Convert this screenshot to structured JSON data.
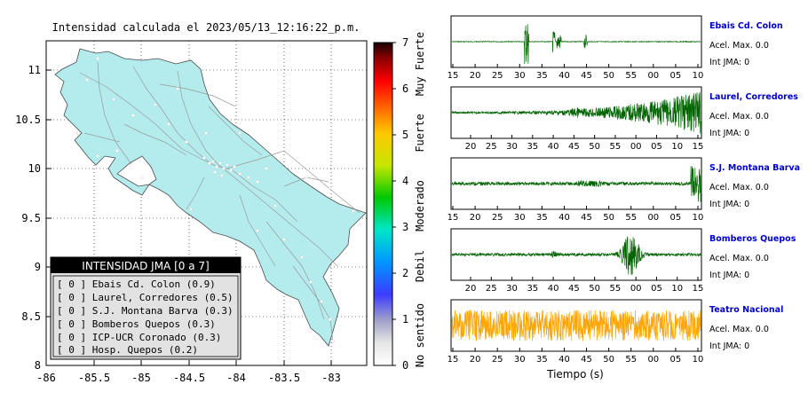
{
  "map": {
    "title": "Intensidad calculada el 2023/05/13_12:16:22_p.m.",
    "x_ticks": [
      "-86",
      "-85.5",
      "-85",
      "-84.5",
      "-84",
      "-83.5",
      "-83"
    ],
    "y_ticks": [
      "11",
      "10.5",
      "10",
      "9.5",
      "9",
      "8.5",
      "8"
    ],
    "land_color": "#b4ecee",
    "legend": {
      "title": "INTENSIDAD JMA [0 a 7]",
      "items": [
        "[ 0 ]  Ebais Cd. Colon (0.9)",
        "[ 0 ]  Laurel, Corredores (0.5)",
        "[ 0 ]  S.J. Montana Barva (0.3)",
        "[ 0 ]  Bomberos Quepos (0.3)",
        "[ 0 ]  ICP-UCR Coronado (0.3)",
        "[ 0 ]  Hosp. Quepos (0.2)"
      ]
    }
  },
  "colorbar": {
    "tick_labels": [
      "7",
      "6",
      "5",
      "4",
      "3",
      "2",
      "1",
      "0"
    ],
    "category_labels": [
      "Muy Fuerte",
      "Fuerte",
      "Moderado",
      "Debil",
      "No sentido"
    ]
  },
  "chart_data": {
    "type": "line",
    "xlabel": "Tiempo (s)",
    "series": [
      {
        "name": "Ebais Cd. Colon",
        "color": "#006400",
        "x_tick_labels": [
          "15",
          "20",
          "25",
          "30",
          "35",
          "40",
          "45",
          "50",
          "55",
          "00",
          "05",
          "10"
        ],
        "aceleracion": "Acel. Max. 0.0",
        "intensidad": "Int JMA: 0",
        "waveform": "sparse spikes near 33-40 s"
      },
      {
        "name": "Laurel, Corredores",
        "color": "#006400",
        "x_tick_labels": [
          "20",
          "25",
          "30",
          "35",
          "40",
          "45",
          "50",
          "55",
          "00",
          "05",
          "10",
          "15"
        ],
        "aceleracion": "Acel. Max. 0.0",
        "intensidad": "Int JMA: 0",
        "waveform": "amplitude increasing toward end"
      },
      {
        "name": "S.J. Montana Barva",
        "color": "#006400",
        "x_tick_labels": [
          "15",
          "20",
          "25",
          "30",
          "35",
          "40",
          "45",
          "50",
          "55",
          "00",
          "05",
          "10"
        ],
        "aceleracion": "Acel. Max. 0.0",
        "intensidad": "Int JMA: 0",
        "waveform": "low noise, spike at end"
      },
      {
        "name": "Bomberos Quepos",
        "color": "#006400",
        "x_tick_labels": [
          "20",
          "25",
          "30",
          "35",
          "40",
          "45",
          "50",
          "55",
          "00",
          "05",
          "10",
          "15"
        ],
        "aceleracion": "Acel. Max. 0.0",
        "intensidad": "Int JMA: 0",
        "waveform": "burst near 00"
      },
      {
        "name": "Teatro Nacional",
        "color": "#ffa500",
        "x_tick_labels": [
          "15",
          "20",
          "25",
          "30",
          "35",
          "40",
          "45",
          "50",
          "55",
          "00",
          "05",
          "10"
        ],
        "aceleracion": "Acel. Max. 0.0",
        "intensidad": "Int JMA: 0",
        "waveform": "continuous high-amplitude noise"
      }
    ]
  }
}
